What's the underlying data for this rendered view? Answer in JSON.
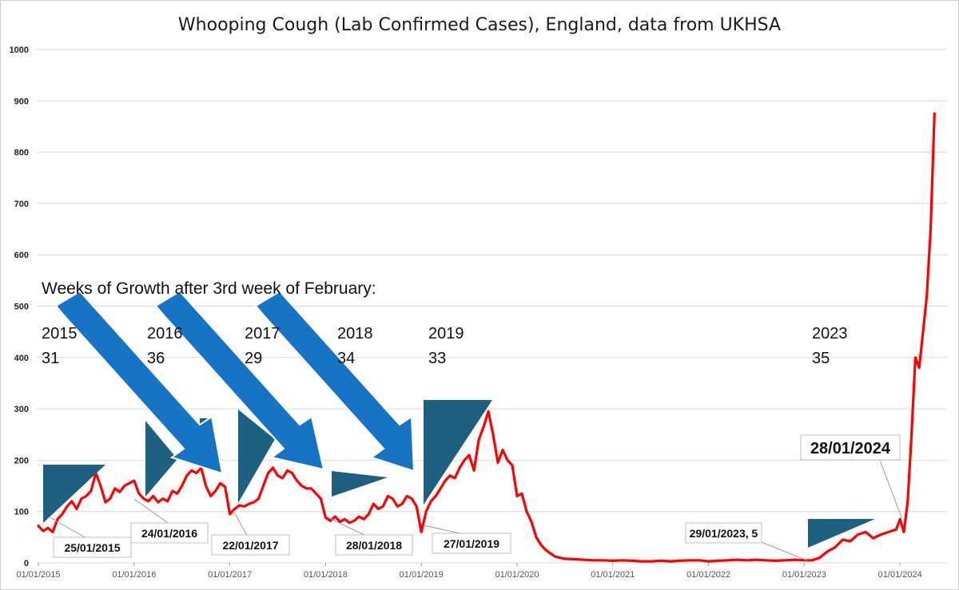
{
  "chart_data": {
    "type": "line",
    "title": "Whooping Cough (Lab Confirmed Cases), England, data from UKHSA",
    "xlabel": "",
    "ylabel": "",
    "ylim": [
      0,
      1000
    ],
    "yticks": [
      "0",
      "100",
      "200",
      "300",
      "400",
      "500",
      "600",
      "700",
      "800",
      "900",
      "1000"
    ],
    "xticks": [
      "01/01/2015",
      "01/01/2016",
      "01/01/2017",
      "01/01/2018",
      "01/01/2019",
      "01/01/2020",
      "01/01/2021",
      "01/01/2022",
      "01/01/2023",
      "01/01/2024"
    ],
    "series": [
      {
        "name": "Lab confirmed cases",
        "color": "#ff0000",
        "x": [
          2015.0,
          2015.05,
          2015.1,
          2015.15,
          2015.2,
          2015.25,
          2015.3,
          2015.35,
          2015.4,
          2015.45,
          2015.5,
          2015.55,
          2015.6,
          2015.65,
          2015.7,
          2015.75,
          2015.8,
          2015.85,
          2015.9,
          2015.95,
          2016.0,
          2016.05,
          2016.1,
          2016.15,
          2016.2,
          2016.25,
          2016.3,
          2016.35,
          2016.4,
          2016.45,
          2016.5,
          2016.55,
          2016.6,
          2016.65,
          2016.7,
          2016.75,
          2016.8,
          2016.85,
          2016.9,
          2016.95,
          2017.0,
          2017.05,
          2017.1,
          2017.15,
          2017.2,
          2017.25,
          2017.3,
          2017.35,
          2017.4,
          2017.45,
          2017.5,
          2017.55,
          2017.6,
          2017.65,
          2017.7,
          2017.75,
          2017.8,
          2017.85,
          2017.9,
          2017.95,
          2018.0,
          2018.05,
          2018.1,
          2018.15,
          2018.2,
          2018.25,
          2018.3,
          2018.35,
          2018.4,
          2018.45,
          2018.5,
          2018.55,
          2018.6,
          2018.65,
          2018.7,
          2018.75,
          2018.8,
          2018.85,
          2018.9,
          2018.95,
          2019.0,
          2019.05,
          2019.1,
          2019.15,
          2019.2,
          2019.25,
          2019.3,
          2019.35,
          2019.4,
          2019.45,
          2019.5,
          2019.55,
          2019.6,
          2019.65,
          2019.7,
          2019.75,
          2019.8,
          2019.85,
          2019.9,
          2019.95,
          2020.0,
          2020.05,
          2020.1,
          2020.15,
          2020.2,
          2020.25,
          2020.3,
          2020.35,
          2020.4,
          2020.5,
          2020.6,
          2020.7,
          2020.8,
          2020.9,
          2021.0,
          2021.1,
          2021.2,
          2021.3,
          2021.4,
          2021.5,
          2021.6,
          2021.7,
          2021.8,
          2021.9,
          2022.0,
          2022.1,
          2022.2,
          2022.3,
          2022.4,
          2022.5,
          2022.6,
          2022.7,
          2022.8,
          2022.9,
          2023.0,
          2023.08,
          2023.16,
          2023.24,
          2023.32,
          2023.4,
          2023.48,
          2023.56,
          2023.64,
          2023.72,
          2023.8,
          2023.88,
          2023.96,
          2024.0,
          2024.04,
          2024.08,
          2024.12,
          2024.16,
          2024.2,
          2024.24,
          2024.28,
          2024.32,
          2024.36
        ],
        "values": [
          72,
          62,
          68,
          60,
          85,
          95,
          110,
          120,
          105,
          125,
          130,
          140,
          175,
          150,
          118,
          125,
          145,
          138,
          150,
          155,
          160,
          135,
          125,
          120,
          130,
          118,
          125,
          120,
          140,
          135,
          150,
          170,
          180,
          175,
          185,
          150,
          130,
          140,
          155,
          148,
          95,
          105,
          112,
          110,
          115,
          118,
          125,
          150,
          175,
          185,
          170,
          165,
          180,
          175,
          160,
          150,
          145,
          145,
          135,
          125,
          88,
          82,
          90,
          80,
          85,
          78,
          82,
          90,
          85,
          95,
          115,
          105,
          110,
          130,
          125,
          110,
          115,
          130,
          125,
          110,
          60,
          100,
          120,
          130,
          145,
          160,
          170,
          165,
          185,
          200,
          210,
          180,
          240,
          265,
          295,
          250,
          195,
          220,
          200,
          190,
          130,
          135,
          100,
          80,
          50,
          35,
          25,
          18,
          12,
          8,
          7,
          6,
          5,
          5,
          4,
          5,
          4,
          3,
          3,
          4,
          3,
          4,
          5,
          5,
          3,
          4,
          5,
          6,
          5,
          6,
          5,
          4,
          5,
          6,
          5,
          5,
          10,
          22,
          30,
          45,
          42,
          55,
          60,
          48,
          55,
          60,
          65,
          85,
          60,
          120,
          250,
          400,
          380,
          450,
          520,
          650,
          875
        ]
      }
    ]
  },
  "annotations": {
    "headline": "Weeks of Growth after 3rd week of February:",
    "years": [
      {
        "year": "2015",
        "weeks": "31"
      },
      {
        "year": "2016",
        "weeks": "36"
      },
      {
        "year": "2017",
        "weeks": "29"
      },
      {
        "year": "2018",
        "weeks": "34"
      },
      {
        "year": "2019",
        "weeks": "33"
      },
      {
        "year": "2023",
        "weeks": "35"
      }
    ],
    "callouts": [
      {
        "label": "25/01/2015"
      },
      {
        "label": "24/01/2016"
      },
      {
        "label": "22/01/2017"
      },
      {
        "label": "28/01/2018"
      },
      {
        "label": "27/01/2019"
      },
      {
        "label": "29/01/2023, 5"
      },
      {
        "label": "28/01/2024"
      }
    ]
  },
  "colors": {
    "line": "#ff0000",
    "arrow": "#1773c4",
    "triangle": "#1f5f7f",
    "grid": "#d9d9d9"
  }
}
